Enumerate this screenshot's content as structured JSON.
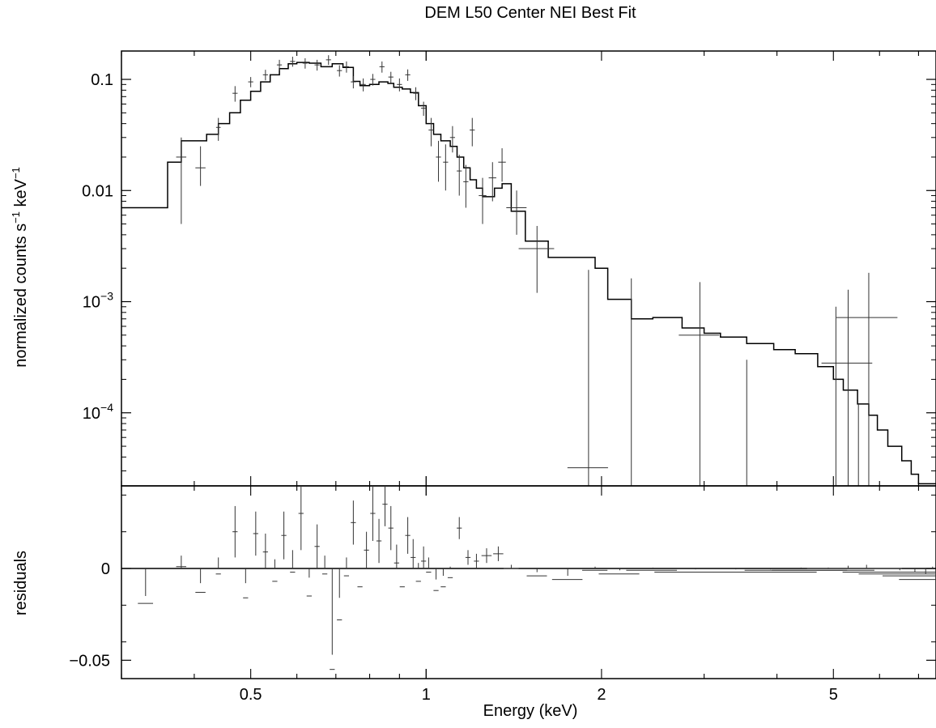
{
  "chart_data": {
    "type": "scatter",
    "title": "DEM L50 Center NEI Best Fit",
    "xlabel": "Energy (keV)",
    "xscale": "log",
    "xlim": [
      0.3,
      7.5
    ],
    "x_ticks": [
      {
        "value": 0.5,
        "label": "0.5"
      },
      {
        "value": 1,
        "label": "1"
      },
      {
        "value": 2,
        "label": "2"
      },
      {
        "value": 5,
        "label": "5"
      }
    ],
    "colors": {
      "line": "#000000",
      "data": "#333333"
    },
    "panels": [
      {
        "name": "spectrum",
        "ylabel_main": "normalized counts s",
        "ylabel_sup1": "−1",
        "ylabel_mid": " keV",
        "ylabel_sup2": "−1",
        "yscale": "log",
        "ylim": [
          2.2e-05,
          0.18
        ],
        "y_ticks": [
          {
            "value": 0.1,
            "label": "0.1"
          },
          {
            "value": 0.01,
            "label": "0.01"
          },
          {
            "value": 0.001,
            "base": "10",
            "exp": "−3"
          },
          {
            "value": 0.0001,
            "base": "10",
            "exp": "−4"
          }
        ],
        "model": [
          [
            0.3,
            0.007
          ],
          [
            0.36,
            0.018
          ],
          [
            0.38,
            0.028
          ],
          [
            0.42,
            0.032
          ],
          [
            0.44,
            0.04
          ],
          [
            0.46,
            0.05
          ],
          [
            0.48,
            0.065
          ],
          [
            0.5,
            0.078
          ],
          [
            0.52,
            0.095
          ],
          [
            0.54,
            0.11
          ],
          [
            0.56,
            0.125
          ],
          [
            0.58,
            0.138
          ],
          [
            0.6,
            0.142
          ],
          [
            0.63,
            0.14
          ],
          [
            0.66,
            0.13
          ],
          [
            0.69,
            0.138
          ],
          [
            0.72,
            0.128
          ],
          [
            0.75,
            0.096
          ],
          [
            0.77,
            0.088
          ],
          [
            0.8,
            0.09
          ],
          [
            0.83,
            0.095
          ],
          [
            0.86,
            0.092
          ],
          [
            0.88,
            0.085
          ],
          [
            0.91,
            0.082
          ],
          [
            0.94,
            0.076
          ],
          [
            0.97,
            0.058
          ],
          [
            1.0,
            0.04
          ],
          [
            1.03,
            0.032
          ],
          [
            1.06,
            0.028
          ],
          [
            1.1,
            0.025
          ],
          [
            1.13,
            0.02
          ],
          [
            1.16,
            0.016
          ],
          [
            1.19,
            0.0125
          ],
          [
            1.22,
            0.0105
          ],
          [
            1.25,
            0.0088
          ],
          [
            1.28,
            0.0088
          ],
          [
            1.31,
            0.0105
          ],
          [
            1.35,
            0.0115
          ],
          [
            1.4,
            0.0065
          ],
          [
            1.48,
            0.0035
          ],
          [
            1.62,
            0.0025
          ],
          [
            1.83,
            0.0025
          ],
          [
            1.95,
            0.002
          ],
          [
            2.05,
            0.00105
          ],
          [
            2.25,
            0.0007
          ],
          [
            2.45,
            0.00072
          ],
          [
            2.75,
            0.00058
          ],
          [
            3.0,
            0.00052
          ],
          [
            3.2,
            0.00048
          ],
          [
            3.55,
            0.00042
          ],
          [
            3.95,
            0.00037
          ],
          [
            4.3,
            0.00034
          ],
          [
            4.7,
            0.00026
          ],
          [
            5.0,
            0.0002
          ],
          [
            5.2,
            0.00016
          ],
          [
            5.5,
            0.00012
          ],
          [
            5.75,
            9.5e-05
          ],
          [
            5.95,
            7e-05
          ],
          [
            6.2,
            5e-05
          ],
          [
            6.55,
            3.7e-05
          ],
          [
            6.8,
            2.8e-05
          ],
          [
            7.0,
            2.3e-05
          ],
          [
            7.5,
            2.2e-05
          ]
        ],
        "points": [
          [
            0.38,
            0.02,
            0.02,
            0.015,
            0.01
          ],
          [
            0.41,
            0.016,
            0.02,
            0.005,
            0.009
          ],
          [
            0.44,
            0.037,
            0.009,
            0.009,
            0.008
          ],
          [
            0.47,
            0.075,
            0.01,
            0.012,
            0.012
          ],
          [
            0.5,
            0.095,
            0.01,
            0.01,
            0.01
          ],
          [
            0.53,
            0.11,
            0.01,
            0.012,
            0.012
          ],
          [
            0.56,
            0.135,
            0.01,
            0.015,
            0.015
          ],
          [
            0.59,
            0.145,
            0.01,
            0.015,
            0.015
          ],
          [
            0.62,
            0.14,
            0.01,
            0.015,
            0.015
          ],
          [
            0.65,
            0.135,
            0.01,
            0.015,
            0.015
          ],
          [
            0.68,
            0.15,
            0.01,
            0.015,
            0.015
          ],
          [
            0.71,
            0.12,
            0.01,
            0.014,
            0.014
          ],
          [
            0.73,
            0.13,
            0.01,
            0.015,
            0.015
          ],
          [
            0.75,
            0.095,
            0.01,
            0.012,
            0.012
          ],
          [
            0.78,
            0.09,
            0.01,
            0.012,
            0.012
          ],
          [
            0.81,
            0.1,
            0.01,
            0.012,
            0.012
          ],
          [
            0.84,
            0.13,
            0.01,
            0.015,
            0.015
          ],
          [
            0.87,
            0.105,
            0.01,
            0.012,
            0.012
          ],
          [
            0.9,
            0.09,
            0.01,
            0.012,
            0.012
          ],
          [
            0.93,
            0.11,
            0.01,
            0.013,
            0.013
          ],
          [
            0.96,
            0.075,
            0.01,
            0.01,
            0.01
          ],
          [
            0.99,
            0.055,
            0.01,
            0.008,
            0.008
          ],
          [
            1.02,
            0.035,
            0.01,
            0.01,
            0.01
          ],
          [
            1.05,
            0.02,
            0.01,
            0.008,
            0.008
          ],
          [
            1.08,
            0.018,
            0.01,
            0.008,
            0.008
          ],
          [
            1.11,
            0.03,
            0.01,
            0.008,
            0.008
          ],
          [
            1.14,
            0.015,
            0.01,
            0.006,
            0.006
          ],
          [
            1.17,
            0.012,
            0.01,
            0.005,
            0.005
          ],
          [
            1.2,
            0.035,
            0.01,
            0.01,
            0.01
          ],
          [
            1.25,
            0.009,
            0.015,
            0.004,
            0.004
          ],
          [
            1.3,
            0.013,
            0.015,
            0.005,
            0.005
          ],
          [
            1.35,
            0.018,
            0.015,
            0.006,
            0.006
          ],
          [
            1.43,
            0.007,
            0.04,
            0.003,
            0.003
          ],
          [
            1.55,
            0.003,
            0.07,
            0.0018,
            0.0018
          ],
          [
            1.9,
            3.2e-05,
            0.08,
            2e-05,
            0.0019
          ],
          [
            2.25,
            0.00012,
            0.0,
            0.0001,
            0.0015
          ],
          [
            2.95,
            0.0005,
            0.08,
            0.00048,
            0.001
          ],
          [
            3.55,
            3e-05,
            0.0,
            1e-05,
            0.00027
          ],
          [
            5.05,
            0.0001,
            0.0,
            8e-05,
            0.0008
          ],
          [
            5.3,
            0.00028,
            0.1,
            0.00026,
            0.001
          ],
          [
            5.52,
            0.00012,
            0.0,
            0.0001,
            0.0
          ],
          [
            5.75,
            0.00072,
            0.12,
            0.0007,
            0.0011
          ]
        ]
      },
      {
        "name": "residuals",
        "ylabel": "residuals",
        "yscale": "linear",
        "ylim": [
          -0.06,
          0.045
        ],
        "y_ticks": [
          {
            "value": 0,
            "label": "0"
          },
          {
            "value": -0.05,
            "label": "−0.05"
          }
        ],
        "zero_line": 0,
        "points": [
          [
            0.33,
            -0.019,
            0.03,
            0.004,
            0.004
          ],
          [
            0.38,
            0.001,
            0.02,
            0.006,
            0.006
          ],
          [
            0.41,
            -0.013,
            0.02,
            0.005,
            0.005
          ],
          [
            0.44,
            -0.003,
            0.01,
            0.009,
            0.009
          ],
          [
            0.47,
            0.02,
            0.01,
            0.014,
            0.014
          ],
          [
            0.49,
            -0.016,
            0.01,
            0.008,
            0.008
          ],
          [
            0.51,
            0.019,
            0.01,
            0.012,
            0.012
          ],
          [
            0.53,
            0.009,
            0.01,
            0.01,
            0.01
          ],
          [
            0.55,
            -0.007,
            0.01,
            0.012,
            0.012
          ],
          [
            0.57,
            0.018,
            0.01,
            0.013,
            0.013
          ],
          [
            0.59,
            -0.002,
            0.01,
            0.012,
            0.012
          ],
          [
            0.61,
            0.03,
            0.01,
            0.02,
            0.02
          ],
          [
            0.63,
            -0.015,
            0.01,
            0.01,
            0.01
          ],
          [
            0.65,
            0.012,
            0.01,
            0.012,
            0.012
          ],
          [
            0.67,
            -0.003,
            0.01,
            0.01,
            0.01
          ],
          [
            0.69,
            -0.055,
            0.01,
            0.008,
            0.008
          ],
          [
            0.71,
            -0.028,
            0.01,
            0.012,
            0.012
          ],
          [
            0.73,
            -0.004,
            0.01,
            0.01,
            0.01
          ],
          [
            0.75,
            0.025,
            0.01,
            0.012,
            0.012
          ],
          [
            0.77,
            -0.01,
            0.01,
            0.01,
            0.01
          ],
          [
            0.79,
            0.01,
            0.01,
            0.01,
            0.01
          ],
          [
            0.81,
            0.03,
            0.01,
            0.015,
            0.015
          ],
          [
            0.83,
            0.015,
            0.01,
            0.012,
            0.012
          ],
          [
            0.85,
            0.035,
            0.01,
            0.012,
            0.012
          ],
          [
            0.87,
            0.022,
            0.01,
            0.012,
            0.012
          ],
          [
            0.89,
            0.003,
            0.01,
            0.01,
            0.01
          ],
          [
            0.91,
            -0.01,
            0.01,
            0.01,
            0.01
          ],
          [
            0.93,
            0.018,
            0.01,
            0.01,
            0.01
          ],
          [
            0.95,
            0.006,
            0.01,
            0.01,
            0.01
          ],
          [
            0.97,
            -0.007,
            0.01,
            0.01,
            0.01
          ],
          [
            0.99,
            0.004,
            0.01,
            0.008,
            0.008
          ],
          [
            1.01,
            -0.002,
            0.01,
            0.008,
            0.008
          ],
          [
            1.04,
            -0.012,
            0.01,
            0.006,
            0.006
          ],
          [
            1.07,
            -0.01,
            0.01,
            0.006,
            0.006
          ],
          [
            1.1,
            -0.005,
            0.01,
            0.006,
            0.006
          ],
          [
            1.14,
            0.022,
            0.01,
            0.006,
            0.006
          ],
          [
            1.18,
            0.006,
            0.01,
            0.004,
            0.004
          ],
          [
            1.22,
            0.004,
            0.01,
            0.004,
            0.004
          ],
          [
            1.27,
            0.007,
            0.02,
            0.004,
            0.004
          ],
          [
            1.33,
            0.008,
            0.02,
            0.004,
            0.004
          ],
          [
            1.4,
            0.0,
            0.03,
            0.002,
            0.002
          ],
          [
            1.55,
            -0.004,
            0.04,
            0.002,
            0.002
          ],
          [
            1.75,
            -0.006,
            0.06,
            0.002,
            0.002
          ],
          [
            1.95,
            -0.001,
            0.05,
            0.002,
            0.002
          ],
          [
            2.15,
            -0.003,
            0.08,
            0.002,
            0.002
          ],
          [
            2.45,
            -0.001,
            0.1,
            0.0015,
            0.0015
          ],
          [
            2.9,
            -0.002,
            0.15,
            0.0015,
            0.0015
          ],
          [
            3.4,
            -0.002,
            0.2,
            0.0015,
            0.0015
          ],
          [
            3.9,
            -0.002,
            0.2,
            0.0015,
            0.0015
          ],
          [
            4.4,
            -0.001,
            0.2,
            0.0015,
            0.0015
          ],
          [
            4.9,
            -0.001,
            0.2,
            0.0015,
            0.0015
          ],
          [
            5.3,
            0.0,
            0.15,
            0.0015,
            0.0015
          ],
          [
            5.7,
            0.0,
            0.15,
            0.002,
            0.002
          ],
          [
            6.1,
            -0.002,
            0.15,
            0.002,
            0.002
          ],
          [
            6.5,
            -0.003,
            0.15,
            0.002,
            0.002
          ],
          [
            6.9,
            -0.004,
            0.12,
            0.002,
            0.002
          ],
          [
            7.2,
            -0.006,
            0.1,
            0.003,
            0.003
          ],
          [
            7.4,
            -0.002,
            0.08,
            0.003,
            0.003
          ]
        ]
      }
    ]
  }
}
